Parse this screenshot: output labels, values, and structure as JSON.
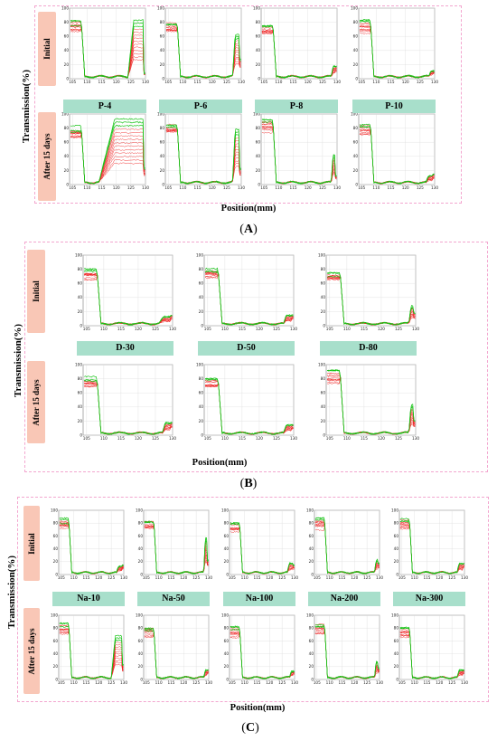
{
  "common": {
    "ylabel": "Transmission(%)",
    "xlabel": "Position(mm)",
    "row_labels": [
      "Initial",
      "After 15 days"
    ],
    "x_ticks": [
      105,
      110,
      115,
      120,
      125,
      130
    ],
    "y_ticks": [
      0,
      20,
      40,
      60,
      80,
      100
    ],
    "colors": {
      "initial_scan": "#ee1c1c",
      "final_scan": "#19c419",
      "panel_border": "#f3a6cf",
      "row_label_bg": "#f9c7b6",
      "sample_label_bg": "#a8dfcb"
    }
  },
  "panels": [
    {
      "id": "A",
      "caption": "A",
      "samples": [
        "P-4",
        "P-6",
        "P-8",
        "P-10"
      ]
    },
    {
      "id": "B",
      "caption": "B",
      "samples": [
        "D-30",
        "D-50",
        "D-80"
      ]
    },
    {
      "id": "C",
      "caption": "C",
      "samples": [
        "Na-10",
        "Na-50",
        "Na-100",
        "Na-200",
        "Na-300"
      ]
    }
  ],
  "chart_data": {
    "type": "line",
    "description_axes": {
      "xlim": [
        104,
        130
      ],
      "ylim": [
        0,
        100
      ],
      "grid": true
    },
    "curves": {
      "P-4": {
        "initial": {
          "edge": 108,
          "plateau": 80,
          "rise_start": 124,
          "rise_level": 80,
          "end": 5
        },
        "after": {
          "edge": 108,
          "plateau": 80,
          "rise_start": 114,
          "rise_level": 90,
          "end": 20
        }
      },
      "P-6": {
        "initial": {
          "edge": 108,
          "plateau": 80,
          "rise_start": 127,
          "rise_level": 60,
          "end": 25
        },
        "after": {
          "edge": 108,
          "plateau": 85,
          "rise_start": 127,
          "rise_level": 75,
          "end": 20
        }
      },
      "P-8": {
        "initial": {
          "edge": 108,
          "plateau": 75,
          "rise_start": 128,
          "rise_level": 15,
          "end": 15
        },
        "after": {
          "edge": 108,
          "plateau": 90,
          "rise_start": 128,
          "rise_level": 40,
          "end": 10
        }
      },
      "P-10": {
        "initial": {
          "edge": 108,
          "plateau": 80,
          "rise_start": 128,
          "rise_level": 8,
          "end": 8
        },
        "after": {
          "edge": 108,
          "plateau": 85,
          "rise_start": 127,
          "rise_level": 10,
          "end": 12
        }
      },
      "D-30": {
        "initial": {
          "edge": 108,
          "plateau": 78,
          "rise_start": 126,
          "rise_level": 10,
          "end": 12
        },
        "after": {
          "edge": 108,
          "plateau": 80,
          "rise_start": 127,
          "rise_level": 15,
          "end": 15
        }
      },
      "D-50": {
        "initial": {
          "edge": 108,
          "plateau": 80,
          "rise_start": 127,
          "rise_level": 12,
          "end": 12
        },
        "after": {
          "edge": 108,
          "plateau": 80,
          "rise_start": 127,
          "rise_level": 12,
          "end": 12
        }
      },
      "D-80": {
        "initial": {
          "edge": 108,
          "plateau": 75,
          "rise_start": 128,
          "rise_level": 25,
          "end": 15
        },
        "after": {
          "edge": 108,
          "plateau": 90,
          "rise_start": 128,
          "rise_level": 40,
          "end": 18
        }
      },
      "Na-10": {
        "initial": {
          "edge": 108,
          "plateau": 85,
          "rise_start": 127,
          "rise_level": 10,
          "end": 12
        },
        "after": {
          "edge": 108,
          "plateau": 85,
          "rise_start": 125,
          "rise_level": 65,
          "end": 20
        }
      },
      "Na-50": {
        "initial": {
          "edge": 108,
          "plateau": 85,
          "rise_start": 128,
          "rise_level": 55,
          "end": 20
        },
        "after": {
          "edge": 108,
          "plateau": 80,
          "rise_start": 128,
          "rise_level": 12,
          "end": 12
        }
      },
      "Na-100": {
        "initial": {
          "edge": 108,
          "plateau": 80,
          "rise_start": 127,
          "rise_level": 15,
          "end": 12
        },
        "after": {
          "edge": 108,
          "plateau": 80,
          "rise_start": 128,
          "rise_level": 10,
          "end": 10
        }
      },
      "Na-200": {
        "initial": {
          "edge": 108,
          "plateau": 85,
          "rise_start": 128,
          "rise_level": 20,
          "end": 15
        },
        "after": {
          "edge": 108,
          "plateau": 85,
          "rise_start": 128,
          "rise_level": 25,
          "end": 15
        }
      },
      "Na-300": {
        "initial": {
          "edge": 108,
          "plateau": 85,
          "rise_start": 127,
          "rise_level": 15,
          "end": 15
        },
        "after": {
          "edge": 108,
          "plateau": 80,
          "rise_start": 127,
          "rise_level": 12,
          "end": 12
        }
      }
    }
  }
}
